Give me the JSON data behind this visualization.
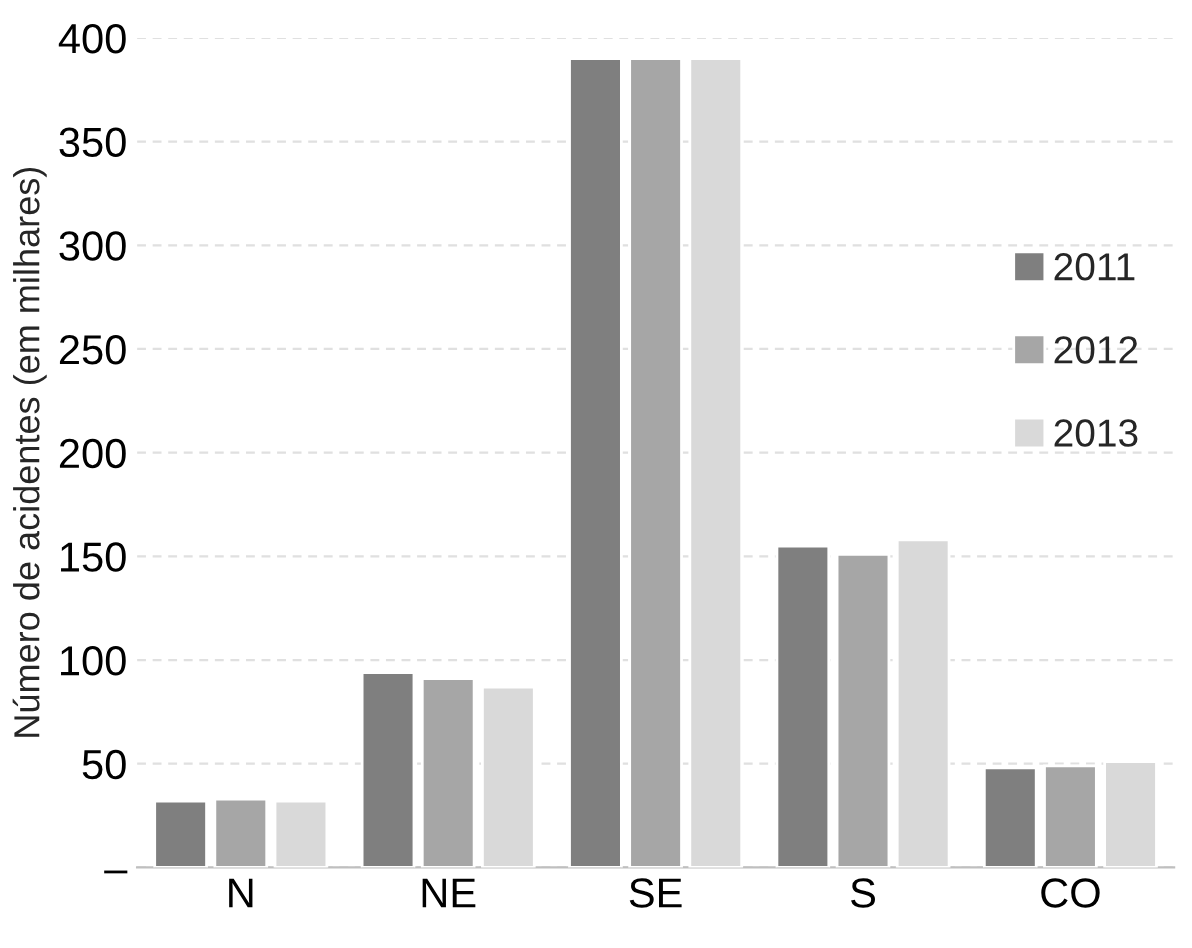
{
  "chart_data": {
    "type": "bar",
    "ylabel": "Número de acidentes (em milhares)",
    "categories": [
      "N",
      "NE",
      "SE",
      "S",
      "CO"
    ],
    "series": [
      {
        "name": "2011",
        "color": "#7f7f7f",
        "values": [
          32,
          94,
          390,
          155,
          48
        ]
      },
      {
        "name": "2012",
        "color": "#a6a6a6",
        "values": [
          33,
          91,
          390,
          151,
          49
        ]
      },
      {
        "name": "2013",
        "color": "#d9d9d9",
        "values": [
          32,
          87,
          390,
          158,
          51
        ]
      }
    ],
    "ylim": [
      0,
      400
    ],
    "yticks": [
      {
        "value": 0,
        "label": "–"
      },
      50,
      100,
      150,
      200,
      250,
      300,
      350,
      400
    ],
    "grid": "y",
    "legend": "right"
  }
}
